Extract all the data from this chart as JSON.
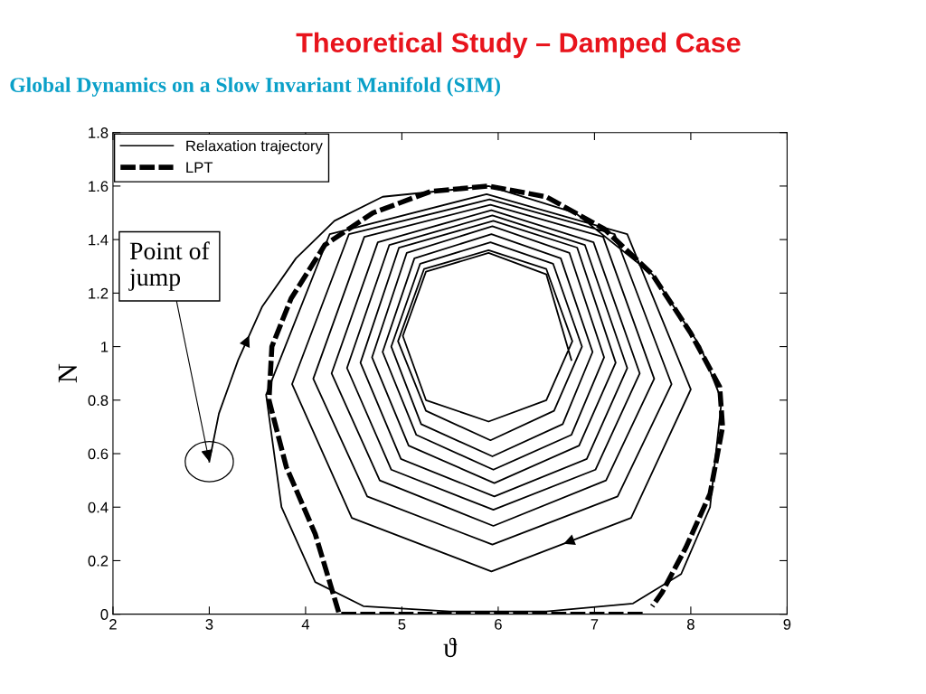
{
  "chart_data": {
    "type": "line",
    "title": "Theoretical Study – Damped Case",
    "subtitle": "Global Dynamics on a Slow Invariant Manifold (SIM)",
    "xlabel": "ϑ",
    "ylabel": "N",
    "xlim": [
      2,
      9
    ],
    "ylim": [
      0,
      1.8
    ],
    "xticks": [
      2,
      3,
      4,
      5,
      6,
      7,
      8,
      9
    ],
    "yticks": [
      0,
      0.2,
      0.4,
      0.6,
      0.8,
      1,
      1.2,
      1.4,
      1.6,
      1.8
    ],
    "grid": false,
    "legend": "top left",
    "marker": "none",
    "annotations": [
      {
        "text": "Point of jump",
        "x": 3.0,
        "y": 0.57
      }
    ],
    "series": [
      {
        "name": "Relaxation trajectory",
        "color": "#000000",
        "line_style": "solid",
        "x": [
          3.0,
          3.1,
          3.3,
          3.55,
          3.9,
          4.3,
          4.8,
          5.9,
          6.8,
          7.6,
          8.1,
          8.32,
          8.2,
          7.9,
          7.4,
          6.5,
          5.5,
          4.6,
          4.1,
          3.75,
          3.59,
          4.25,
          5.88,
          7.34,
          8.0,
          7.38,
          5.93,
          4.48,
          3.86,
          4.45,
          5.91,
          7.21,
          7.8,
          7.24,
          5.94,
          4.64,
          4.08,
          4.61,
          5.92,
          7.09,
          7.62,
          7.12,
          5.95,
          4.77,
          4.27,
          4.75,
          5.93,
          6.99,
          7.47,
          7.01,
          5.95,
          4.89,
          4.43,
          4.87,
          5.94,
          6.9,
          7.34,
          6.92,
          5.96,
          4.99,
          4.57,
          4.97,
          5.95,
          6.82,
          7.22,
          6.84,
          5.96,
          5.07,
          4.69,
          5.05,
          5.94,
          6.74,
          7.1,
          6.76,
          5.95,
          5.15,
          4.8,
          5.13,
          5.93,
          6.65,
          6.98,
          6.67,
          5.94,
          5.2,
          4.89,
          5.19,
          5.92,
          6.57,
          6.87,
          6.58,
          5.92,
          5.25,
          4.96,
          5.23,
          5.9,
          6.5,
          6.77,
          6.5,
          5.9,
          5.25,
          5.01,
          5.25,
          5.9,
          6.5,
          6.76
        ],
        "values": [
          0.57,
          0.75,
          0.95,
          1.15,
          1.33,
          1.47,
          1.56,
          1.6,
          1.5,
          1.27,
          1.0,
          0.8,
          0.4,
          0.15,
          0.04,
          0.01,
          0.01,
          0.03,
          0.12,
          0.4,
          0.82,
          1.42,
          1.57,
          1.42,
          0.84,
          0.36,
          0.16,
          0.36,
          0.86,
          1.42,
          1.55,
          1.42,
          0.86,
          0.44,
          0.26,
          0.44,
          0.88,
          1.41,
          1.53,
          1.41,
          0.88,
          0.5,
          0.33,
          0.5,
          0.9,
          1.39,
          1.51,
          1.39,
          0.9,
          0.54,
          0.39,
          0.54,
          0.92,
          1.38,
          1.49,
          1.38,
          0.92,
          0.58,
          0.44,
          0.58,
          0.94,
          1.37,
          1.47,
          1.37,
          0.94,
          0.63,
          0.49,
          0.63,
          0.96,
          1.35,
          1.45,
          1.35,
          0.96,
          0.67,
          0.54,
          0.67,
          0.98,
          1.33,
          1.42,
          1.33,
          0.98,
          0.71,
          0.59,
          0.71,
          1.0,
          1.31,
          1.39,
          1.31,
          1.0,
          0.76,
          0.65,
          0.76,
          1.02,
          1.29,
          1.36,
          1.29,
          1.02,
          0.8,
          0.72,
          0.8,
          1.04,
          1.28,
          1.35,
          1.27,
          0.95
        ]
      },
      {
        "name": "LPT",
        "color": "#000000",
        "line_style": "dashed",
        "x": [
          7.5,
          5.9,
          4.35,
          4.1,
          3.8,
          3.62,
          3.65,
          3.85,
          4.2,
          4.7,
          5.3,
          5.9,
          6.5,
          7.1,
          7.6,
          8.0,
          8.3,
          8.33,
          8.2,
          7.95,
          7.7,
          7.6
        ],
        "values": [
          0,
          0,
          0,
          0.3,
          0.55,
          0.8,
          1.0,
          1.18,
          1.38,
          1.5,
          1.58,
          1.6,
          1.56,
          1.44,
          1.27,
          1.05,
          0.85,
          0.7,
          0.45,
          0.25,
          0.08,
          0.03
        ]
      }
    ]
  }
}
